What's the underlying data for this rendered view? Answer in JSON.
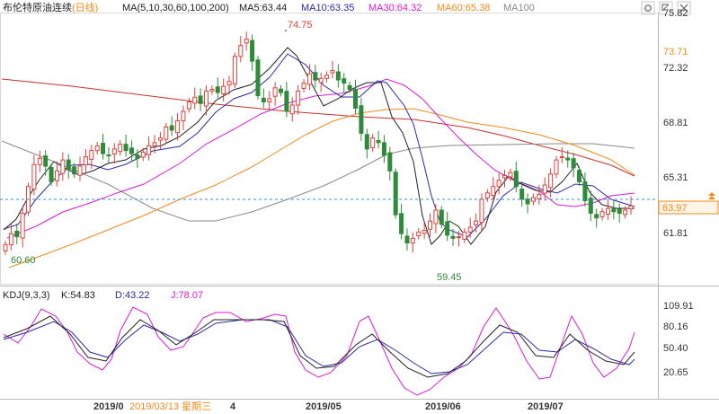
{
  "header": {
    "symbol": "布伦特原油连续",
    "period": "(日线)",
    "ma_label": "MA(5,10,30,60,100,200)",
    "ma5": "MA5:63.44",
    "ma10": "MA10:63.35",
    "ma30": "MA30:64.32",
    "ma60": "MA60:65.38",
    "ma100": "MA100"
  },
  "kdj_header": {
    "label": "KDJ(9,3,3)",
    "k": "K:54.83",
    "d": "D:43.22",
    "j": "J:78.07"
  },
  "toolbar": {
    "icons": [
      "settings-icon",
      "maximize-icon",
      "close-icon"
    ]
  },
  "colors": {
    "up": "#e0403a",
    "down": "#2e8b3a",
    "ma5": "#222222",
    "ma10": "#2a2aa8",
    "ma30": "#d81ad8",
    "ma60": "#f08a1c",
    "ma100": "#8a8a8a",
    "ma200": "#c8302a",
    "k": "#222222",
    "d": "#2a2aa8",
    "j": "#d81ad8",
    "current": "#3a8fd8",
    "current_badge": "#f08a1c",
    "ma30_badge": "#f08a1c"
  },
  "cursor_tooltip": "2019/03/13 星期三",
  "markers": {
    "high": "74.75",
    "low1": "60.60",
    "low2": "59.45"
  },
  "badges": {
    "ma_value": "73.71",
    "current": "63.97"
  },
  "chart_data": [
    {
      "type": "candlestick",
      "title": "布伦特原油连续(日线)",
      "x_tick_labels": [
        "2019/0",
        "2019/05",
        "2019/06",
        "2019/07"
      ],
      "y_tick_labels": [
        "75.82",
        "72.32",
        "68.81",
        "65.31",
        "61.81"
      ],
      "ylim": [
        59.0,
        76.3
      ],
      "current_price": 63.97,
      "high_marker": 74.75,
      "low_markers": [
        60.6,
        59.45
      ],
      "closes": [
        61.5,
        62.2,
        62.0,
        63.5,
        65.2,
        66.6,
        67.0,
        66.5,
        65.5,
        66.2,
        66.9,
        66.3,
        66.0,
        66.5,
        67.1,
        67.5,
        67.8,
        67.3,
        67.2,
        67.6,
        67.9,
        67.5,
        67.3,
        67.0,
        67.4,
        67.8,
        68.0,
        68.3,
        69.0,
        68.8,
        69.4,
        70.0,
        70.6,
        70.9,
        70.5,
        71.3,
        71.4,
        71.2,
        71.6,
        71.9,
        73.5,
        74.2,
        74.6,
        73.2,
        71.0,
        70.6,
        70.8,
        71.5,
        71.2,
        70.0,
        70.4,
        71.3,
        71.8,
        72.4,
        72.0,
        72.1,
        72.3,
        72.6,
        72.0,
        71.8,
        71.4,
        70.2,
        68.6,
        67.6,
        68.3,
        68.0,
        67.2,
        66.2,
        63.4,
        62.2,
        61.6,
        61.9,
        62.3,
        62.4,
        63.0,
        63.7,
        62.8,
        62.1,
        61.9,
        62.0,
        62.3,
        62.6,
        63.0,
        64.4,
        64.8,
        65.2,
        65.6,
        65.9,
        66.1,
        65.2,
        64.4,
        64.1,
        64.5,
        64.7,
        65.3,
        66.0,
        66.9,
        67.1,
        66.9,
        66.4,
        65.5,
        64.3,
        63.5,
        63.2,
        63.6,
        63.8,
        63.6,
        63.5,
        63.7,
        63.97
      ],
      "series": [
        {
          "name": "MA5",
          "value": 63.44
        },
        {
          "name": "MA10",
          "value": 63.35
        },
        {
          "name": "MA30",
          "value": 64.32
        },
        {
          "name": "MA60",
          "value": 65.38
        },
        {
          "name": "MA100",
          "value": null
        }
      ]
    },
    {
      "type": "line",
      "title": "KDJ(9,3,3)",
      "y_tick_labels": [
        "109.91",
        "80.16",
        "50.40",
        "20.65"
      ],
      "ylim": [
        0,
        120
      ],
      "last_values": {
        "K": 54.83,
        "D": 43.22,
        "J": 78.07
      }
    }
  ]
}
